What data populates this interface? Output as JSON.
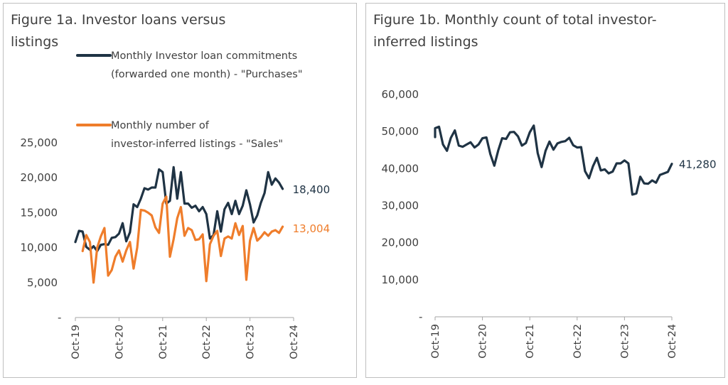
{
  "colors": {
    "dark": "#1f3344",
    "orange": "#ef7d2b",
    "axis": "#a6a6a6"
  },
  "panels": {
    "a": {
      "title": "Figure 1a. Investor loans versus listings"
    },
    "b": {
      "title": "Figure 1b. Monthly count of total investor-inferred listings"
    }
  },
  "chart_data": [
    {
      "type": "line",
      "title": "Figure 1a. Investor loans versus listings",
      "x": {
        "start": "2019-10",
        "count": 61,
        "tick_labels": [
          "Oct-19",
          "Oct-20",
          "Oct-21",
          "Oct-22",
          "Oct-23",
          "Oct-24"
        ]
      },
      "y_tick_labels": [
        "-",
        "5,000",
        "10,000",
        "15,000",
        "20,000",
        "25,000"
      ],
      "ylim": [
        0,
        25000
      ],
      "legend": "top-left",
      "series": [
        {
          "name": "Monthly Investor loan commitments (forwarded one month) - \"Purchases\"",
          "legend_label": "Monthly Investor loan commitments (forwarded one month) - \"Purchases\"",
          "color": "#1f3344",
          "end_label": "18,400",
          "values": [
            10800,
            12400,
            12300,
            10100,
            9700,
            10200,
            9500,
            10400,
            10500,
            10400,
            11400,
            11500,
            12000,
            13500,
            10900,
            12200,
            16200,
            15800,
            17000,
            18500,
            18300,
            18600,
            18600,
            21200,
            20800,
            16300,
            16700,
            21500,
            17000,
            20800,
            16300,
            16300,
            15700,
            16000,
            15200,
            15800,
            14800,
            11300,
            11800,
            15200,
            12300,
            15500,
            16400,
            14800,
            16700,
            14800,
            16000,
            18200,
            16200,
            13600,
            14600,
            16400,
            17800,
            20800,
            19000,
            19900,
            19300,
            18400
          ],
          "x_offset": 0
        },
        {
          "name": "Monthly number of investor-inferred listings - \"Sales\"",
          "legend_label": "Monthly number of investor-inferred listings - \"Sales\"",
          "color": "#ef7d2b",
          "end_label": "13,004",
          "values": [
            9500,
            11800,
            10800,
            5000,
            10000,
            11600,
            12800,
            6000,
            6800,
            8700,
            9600,
            8000,
            9600,
            10800,
            7000,
            10000,
            15400,
            15300,
            15000,
            14600,
            12900,
            12100,
            16300,
            17300,
            8700,
            11200,
            14200,
            15800,
            11700,
            12800,
            12500,
            11100,
            11200,
            11900,
            5200,
            10500,
            11700,
            12400,
            8800,
            11300,
            11600,
            11300,
            13500,
            11800,
            13100,
            5400,
            11000,
            12800,
            11000,
            11500,
            12200,
            11700,
            12300,
            12500,
            12100,
            13000
          ],
          "x_offset": 2
        }
      ]
    },
    {
      "type": "line",
      "title": "Figure 1b. Monthly count of total investor-inferred listings",
      "x": {
        "start": "2019-10",
        "count": 61,
        "tick_labels": [
          "Oct-19",
          "Oct-20",
          "Oct-21",
          "Oct-22",
          "Oct-23",
          "Oct-24"
        ]
      },
      "y_tick_labels": [
        "-",
        "10,000",
        "20,000",
        "30,000",
        "40,000",
        "50,000",
        "60,000"
      ],
      "ylim": [
        0,
        60000
      ],
      "series": [
        {
          "name": "Total investor-inferred listings",
          "color": "#1f3344",
          "end_label": "41,280",
          "values": [
            48500,
            50900,
            51300,
            46500,
            44800,
            48300,
            50300,
            46200,
            45900,
            46500,
            47100,
            45700,
            46500,
            48200,
            48400,
            43900,
            40800,
            44900,
            48200,
            48000,
            49800,
            49900,
            48700,
            46200,
            46900,
            49800,
            51600,
            44200,
            40400,
            44800,
            47300,
            45100,
            46800,
            47200,
            47400,
            48300,
            46300,
            45700,
            45800,
            39300,
            37400,
            40600,
            42900,
            39500,
            39800,
            38700,
            39200,
            41400,
            41400,
            42200,
            41400,
            33000,
            33300,
            37800,
            36000,
            35900,
            36800,
            36200,
            38300,
            38700,
            39100,
            41280
          ],
          "x_offset": -1
        }
      ]
    }
  ]
}
